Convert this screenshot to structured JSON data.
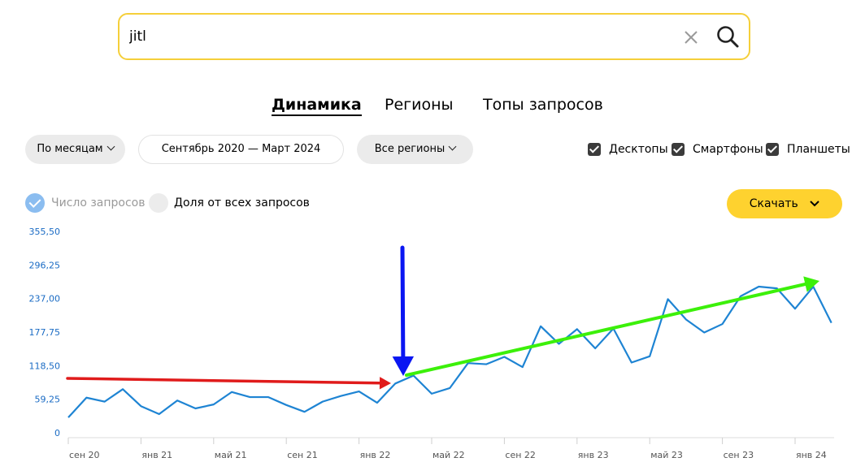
{
  "search": {
    "value": "jitl"
  },
  "tabs": [
    {
      "label": "Динамика",
      "active": true
    },
    {
      "label": "Регионы",
      "active": false
    },
    {
      "label": "Топы запросов",
      "active": false
    }
  ],
  "filters": {
    "period_label": "По месяцам",
    "date_range": "Сентябрь 2020 — Март 2024",
    "region_label": "Все регионы"
  },
  "devices": [
    {
      "label": "Десктопы",
      "checked": true
    },
    {
      "label": "Смартфоны",
      "checked": true
    },
    {
      "label": "Планшеты",
      "checked": true
    }
  ],
  "metric_toggle": {
    "count_label": "Число запросов",
    "share_label": "Доля от всех запросов",
    "selected": "count"
  },
  "download_label": "Скачать",
  "colors": {
    "search_border": "#f5cf3a",
    "line": "#1e84d3",
    "axis_labels": "#1a6bc4",
    "button_yellow": "#fed22f",
    "arrow_red": "#e01b1b",
    "arrow_blue": "#0a16f2",
    "arrow_green": "#3cf00a"
  },
  "chart_data": {
    "type": "line",
    "y_ticks": [
      "355,50",
      "296,25",
      "237,00",
      "177,75",
      "118,50",
      "59,25",
      "0"
    ],
    "ylim": [
      0,
      355.5
    ],
    "x_tick_labels": [
      "сен 20",
      "янв 21",
      "май 21",
      "сен 21",
      "янв 22",
      "май 22",
      "сен 22",
      "янв 23",
      "май 23",
      "сен 23",
      "янв 24"
    ],
    "x": [
      "сен 20",
      "окт 20",
      "ноя 20",
      "дек 20",
      "янв 21",
      "фев 21",
      "мар 21",
      "апр 21",
      "май 21",
      "июн 21",
      "июл 21",
      "авг 21",
      "сен 21",
      "окт 21",
      "ноя 21",
      "дек 21",
      "янв 22",
      "фев 22",
      "мар 22",
      "апр 22",
      "май 22",
      "июн 22",
      "июл 22",
      "авг 22",
      "сен 22",
      "окт 22",
      "ноя 22",
      "дек 22",
      "янв 23",
      "фев 23",
      "мар 23",
      "апр 23",
      "май 23",
      "июн 23",
      "июл 23",
      "авг 23",
      "сен 23",
      "окт 23",
      "ноя 23",
      "дек 23",
      "янв 24",
      "фев 24",
      "мар 24"
    ],
    "values": [
      27,
      62,
      55,
      77,
      47,
      33,
      57,
      43,
      50,
      72,
      63,
      63,
      49,
      37,
      55,
      65,
      73,
      53,
      87,
      101,
      69,
      79,
      123,
      121,
      134,
      116,
      188,
      157,
      183,
      149,
      184,
      124,
      135,
      236,
      200,
      177,
      192,
      241,
      258,
      255,
      219,
      258,
      194
    ],
    "annotations": [
      {
        "type": "arrow",
        "color": "red"
      },
      {
        "type": "arrow",
        "color": "blue"
      },
      {
        "type": "arrow",
        "color": "green"
      }
    ]
  }
}
